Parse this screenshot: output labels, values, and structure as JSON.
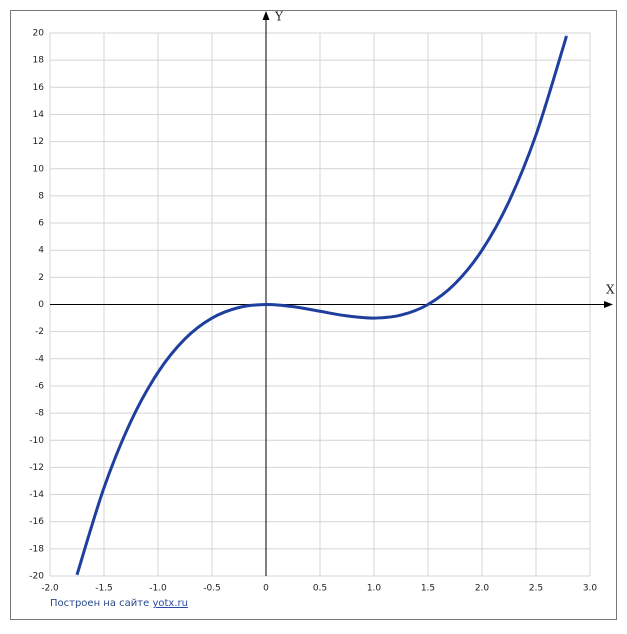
{
  "chart_data": {
    "type": "line",
    "x_label": "X",
    "y_label": "Y",
    "credit": "Построен на сайте",
    "credit_link": "yotx.ru",
    "x": [
      -1.75,
      -1.5,
      -1.25,
      -1.0,
      -0.75,
      -0.5,
      -0.25,
      0,
      0.25,
      0.5,
      0.75,
      1.0,
      1.25,
      1.5,
      1.75,
      2.0,
      2.25,
      2.5,
      2.75,
      2.78
    ],
    "series": [
      {
        "color": "#1f3f9e",
        "values": [
          -19.91,
          -13.5,
          -8.59,
          -5,
          -2.53,
          -1,
          -0.22,
          0,
          -0.16,
          -0.5,
          -0.84,
          -1,
          -0.78,
          0,
          1.53,
          4,
          7.59,
          12.5,
          18.91,
          19.78
        ]
      }
    ],
    "xlim": [
      -2,
      3
    ],
    "ylim": [
      -20,
      20
    ],
    "xticks": [
      {
        "value": -2,
        "label": "-2.0"
      },
      -1.5,
      {
        "value": -1,
        "label": "-1.0"
      },
      -0.5,
      0,
      0.5,
      {
        "value": 1,
        "label": "1.0"
      },
      1.5,
      {
        "value": 2,
        "label": "2.0"
      },
      2.5,
      {
        "value": 3,
        "label": "3.0"
      }
    ],
    "yticks": [
      -20,
      -18,
      -16,
      -14,
      -12,
      -10,
      -8,
      -6,
      -4,
      -2,
      0,
      2,
      4,
      6,
      8,
      10,
      12,
      14,
      16,
      18,
      20
    ],
    "grid": true
  }
}
